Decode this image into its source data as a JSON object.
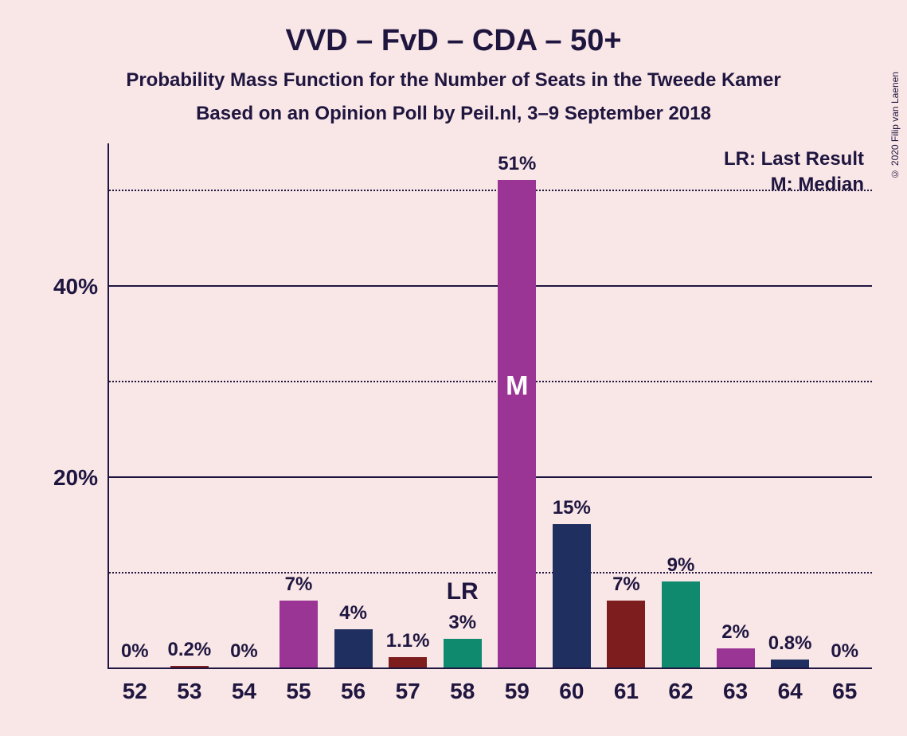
{
  "copyright": "© 2020 Filip van Laenen",
  "title": {
    "text": "VVD – FvD – CDA – 50+",
    "fontsize": 38
  },
  "subtitle1": {
    "text": "Probability Mass Function for the Number of Seats in the Tweede Kamer",
    "fontsize": 24
  },
  "subtitle2": {
    "text": "Based on an Opinion Poll by Peil.nl, 3–9 September 2018",
    "fontsize": 24
  },
  "legend": {
    "lr": "LR: Last Result",
    "m": "M: Median"
  },
  "chart": {
    "type": "bar",
    "background_color": "#f9e6e6",
    "axis_color": "#1f1640",
    "text_color": "#1f1640",
    "label_fontsize": 28,
    "barlabel_fontsize": 24,
    "ylim": [
      0,
      55
    ],
    "y_ticks": [
      {
        "value": 10,
        "label": "",
        "style": "dotted"
      },
      {
        "value": 20,
        "label": "20%",
        "style": "solid"
      },
      {
        "value": 30,
        "label": "",
        "style": "dotted"
      },
      {
        "value": 40,
        "label": "40%",
        "style": "solid"
      },
      {
        "value": 50,
        "label": "",
        "style": "dotted"
      }
    ],
    "bar_colors": {
      "purple": "#9b3595",
      "navy": "#1f2f5f",
      "maroon": "#7d1d1d",
      "teal": "#0f8a6f"
    },
    "bar_width": 0.7,
    "categories": [
      "52",
      "53",
      "54",
      "55",
      "56",
      "57",
      "58",
      "59",
      "60",
      "61",
      "62",
      "63",
      "64",
      "65"
    ],
    "bars": [
      {
        "x": "52",
        "value": 0,
        "label": "0%",
        "color": "purple"
      },
      {
        "x": "53",
        "value": 0.2,
        "label": "0.2%",
        "color": "maroon"
      },
      {
        "x": "54",
        "value": 0,
        "label": "0%",
        "color": "teal"
      },
      {
        "x": "55",
        "value": 7,
        "label": "7%",
        "color": "purple"
      },
      {
        "x": "56",
        "value": 4,
        "label": "4%",
        "color": "navy"
      },
      {
        "x": "57",
        "value": 1.1,
        "label": "1.1%",
        "color": "maroon"
      },
      {
        "x": "58",
        "value": 3,
        "label": "3%",
        "color": "teal",
        "annot": "LR",
        "annot_color": "#1f1640",
        "annot_pos": "above"
      },
      {
        "x": "59",
        "value": 51,
        "label": "51%",
        "color": "purple",
        "annot": "M",
        "annot_color": "#ffffff",
        "annot_pos": "inside"
      },
      {
        "x": "60",
        "value": 15,
        "label": "15%",
        "color": "navy"
      },
      {
        "x": "61",
        "value": 7,
        "label": "7%",
        "color": "maroon"
      },
      {
        "x": "62",
        "value": 9,
        "label": "9%",
        "color": "teal"
      },
      {
        "x": "63",
        "value": 2,
        "label": "2%",
        "color": "purple"
      },
      {
        "x": "64",
        "value": 0.8,
        "label": "0.8%",
        "color": "navy"
      },
      {
        "x": "65",
        "value": 0,
        "label": "0%",
        "color": "maroon"
      }
    ]
  }
}
